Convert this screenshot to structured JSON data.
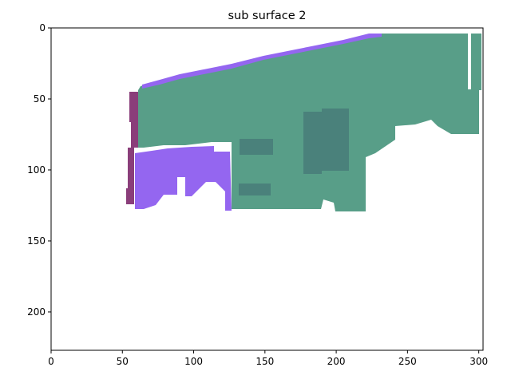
{
  "title": "sub surface 2",
  "colors": {
    "green": "#589e88",
    "green_dark": "#4a817b",
    "purple": "#9466f0",
    "magenta": "#8a3e7a"
  },
  "chart_data": {
    "type": "heatmap",
    "title": "sub surface 2",
    "xlim": [
      0,
      303
    ],
    "ylim": [
      227,
      0
    ],
    "xticks": [
      0,
      50,
      100,
      150,
      200,
      250,
      300
    ],
    "yticks": [
      0,
      50,
      100,
      150,
      200
    ],
    "grid": false,
    "regions": [
      {
        "color": "green",
        "label": ""
      },
      {
        "color": "green_dark",
        "label": ""
      },
      {
        "color": "purple",
        "label": ""
      },
      {
        "color": "magenta",
        "label": ""
      }
    ]
  }
}
